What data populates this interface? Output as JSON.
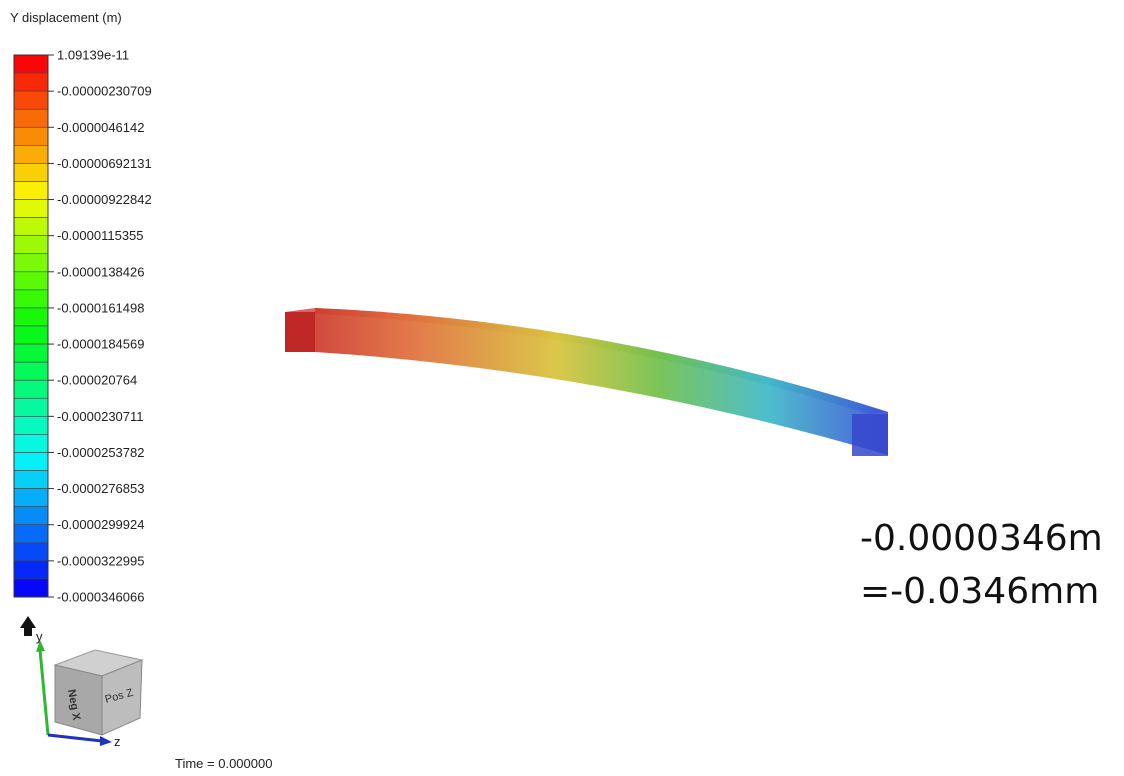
{
  "legend": {
    "title": "Y displacement (m)",
    "labels": [
      "1.09139e-11",
      "-0.00000230709",
      "-0.0000046142",
      "-0.00000692131",
      "-0.00000922842",
      "-0.0000115355",
      "-0.0000138426",
      "-0.0000161498",
      "-0.0000184569",
      "-0.000020764",
      "-0.0000230711",
      "-0.0000253782",
      "-0.0000276853",
      "-0.0000299924",
      "-0.0000322995",
      "-0.0000346066"
    ]
  },
  "annotation": {
    "lines": [
      "-0.0000346m",
      "=-0.0346mm"
    ]
  },
  "view_cube": {
    "front": "Neg X",
    "side": "Pos Z",
    "y_axis": "y",
    "z_axis": "z"
  },
  "time": "Time = 0.000000"
}
